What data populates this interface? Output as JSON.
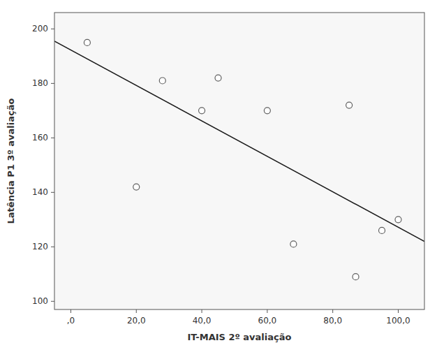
{
  "chart_data": {
    "type": "scatter",
    "xlabel": "IT-MAIS 2º avaliação",
    "ylabel": "Latência P1 3º avaliação",
    "xlim": [
      -5,
      108
    ],
    "ylim": [
      97,
      206
    ],
    "xticks": [
      {
        "value": 0,
        "label": ",0"
      },
      {
        "value": 20,
        "label": "20,0"
      },
      {
        "value": 40,
        "label": "40,0"
      },
      {
        "value": 60,
        "label": "60,0"
      },
      {
        "value": 80,
        "label": "80,0"
      },
      {
        "value": 100,
        "label": "100,0"
      }
    ],
    "yticks": [
      100,
      120,
      140,
      160,
      180,
      200
    ],
    "grid": false,
    "series": [
      {
        "type": "scatter",
        "color": "#606060",
        "x": [
          5,
          20,
          28,
          40,
          45,
          60,
          68,
          85,
          87,
          95,
          100
        ],
        "values": [
          195,
          142,
          181,
          170,
          182,
          170,
          121,
          172,
          109,
          126,
          130
        ]
      },
      {
        "type": "line",
        "color": "#1a1a1a",
        "x": [
          -5,
          108
        ],
        "values": [
          195.5,
          122.0
        ]
      }
    ]
  }
}
